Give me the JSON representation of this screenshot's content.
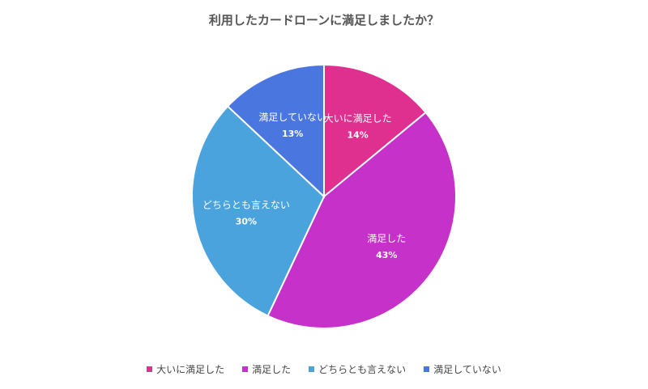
{
  "chart_data": {
    "type": "pie",
    "title": "利用したカードローンに満足しましたか？",
    "categories": [
      "大いに満足した",
      "満足した",
      "どちらとも言えない",
      "満足していない"
    ],
    "values": [
      14,
      43,
      30,
      13
    ],
    "value_labels": [
      "14%",
      "43%",
      "30%",
      "13%"
    ],
    "colors": [
      "#e0308f",
      "#c631c9",
      "#4ba3dd",
      "#4a76e0"
    ],
    "legend_position": "bottom"
  }
}
